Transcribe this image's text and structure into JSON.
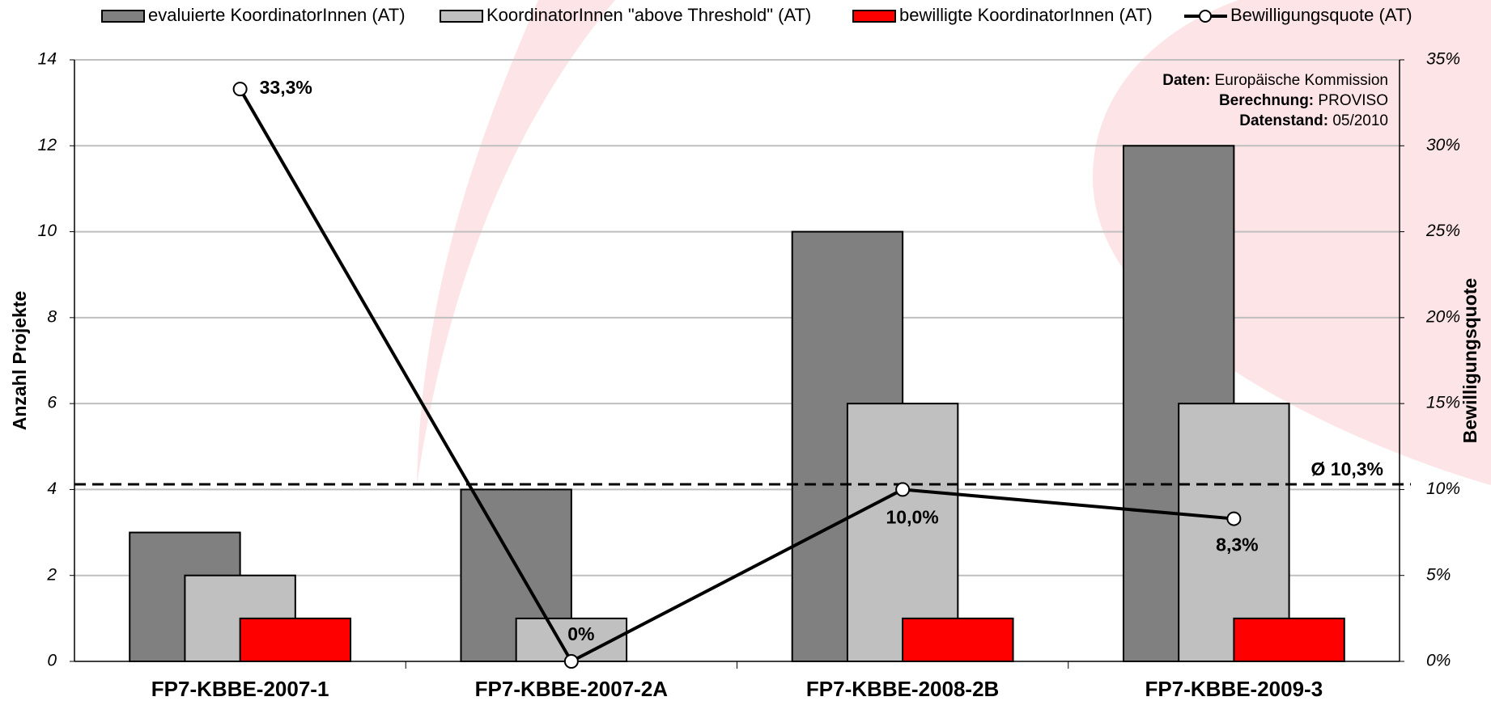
{
  "chart_data": {
    "type": "bar",
    "categories": [
      "FP7-KBBE-2007-1",
      "FP7-KBBE-2007-2A",
      "FP7-KBBE-2008-2B",
      "FP7-KBBE-2009-3"
    ],
    "series": [
      {
        "name": "evaluierte KoordinatorInnen (AT)",
        "color": "#808080",
        "values": [
          3,
          4,
          10,
          12
        ]
      },
      {
        "name": "KoordinatorInnen \"above Threshold\" (AT)",
        "color": "#c0c0c0",
        "values": [
          2,
          1,
          6,
          6
        ]
      },
      {
        "name": "bewilligte KoordinatorInnen (AT)",
        "color": "#ff0000",
        "values": [
          1,
          0,
          1,
          1
        ]
      },
      {
        "name": "Bewilligungsquote (AT)",
        "color": "#000000",
        "type": "line",
        "axis": "y2",
        "values": [
          33.3,
          0,
          10,
          8.3
        ],
        "value_labels": [
          "33,3%",
          "0%",
          "10,0%",
          "8,3%"
        ]
      }
    ],
    "ylabel": "Anzahl Projekte",
    "y2label": "Bewilligungsquote",
    "ylim": [
      0,
      14
    ],
    "yticks": [
      0,
      2,
      4,
      6,
      8,
      10,
      12,
      14
    ],
    "y2lim": [
      0,
      35
    ],
    "y2ticks": [
      {
        "value": 0,
        "label": "0%"
      },
      {
        "value": 5,
        "label": "5%"
      },
      {
        "value": 10,
        "label": "10%"
      },
      {
        "value": 15,
        "label": "15%"
      },
      {
        "value": 20,
        "label": "20%"
      },
      {
        "value": 25,
        "label": "25%"
      },
      {
        "value": 30,
        "label": "30%"
      },
      {
        "value": 35,
        "label": "35%"
      }
    ],
    "average": {
      "value": 10.3,
      "label": "Ø 10,3%"
    },
    "annotations": [
      {
        "label": "Daten:",
        "text": "Europäische Kommission"
      },
      {
        "label": "Berechnung:",
        "text": "PROVISO"
      },
      {
        "label": "Datenstand:",
        "text": "05/2010"
      }
    ],
    "grid": true,
    "legend": "top"
  }
}
